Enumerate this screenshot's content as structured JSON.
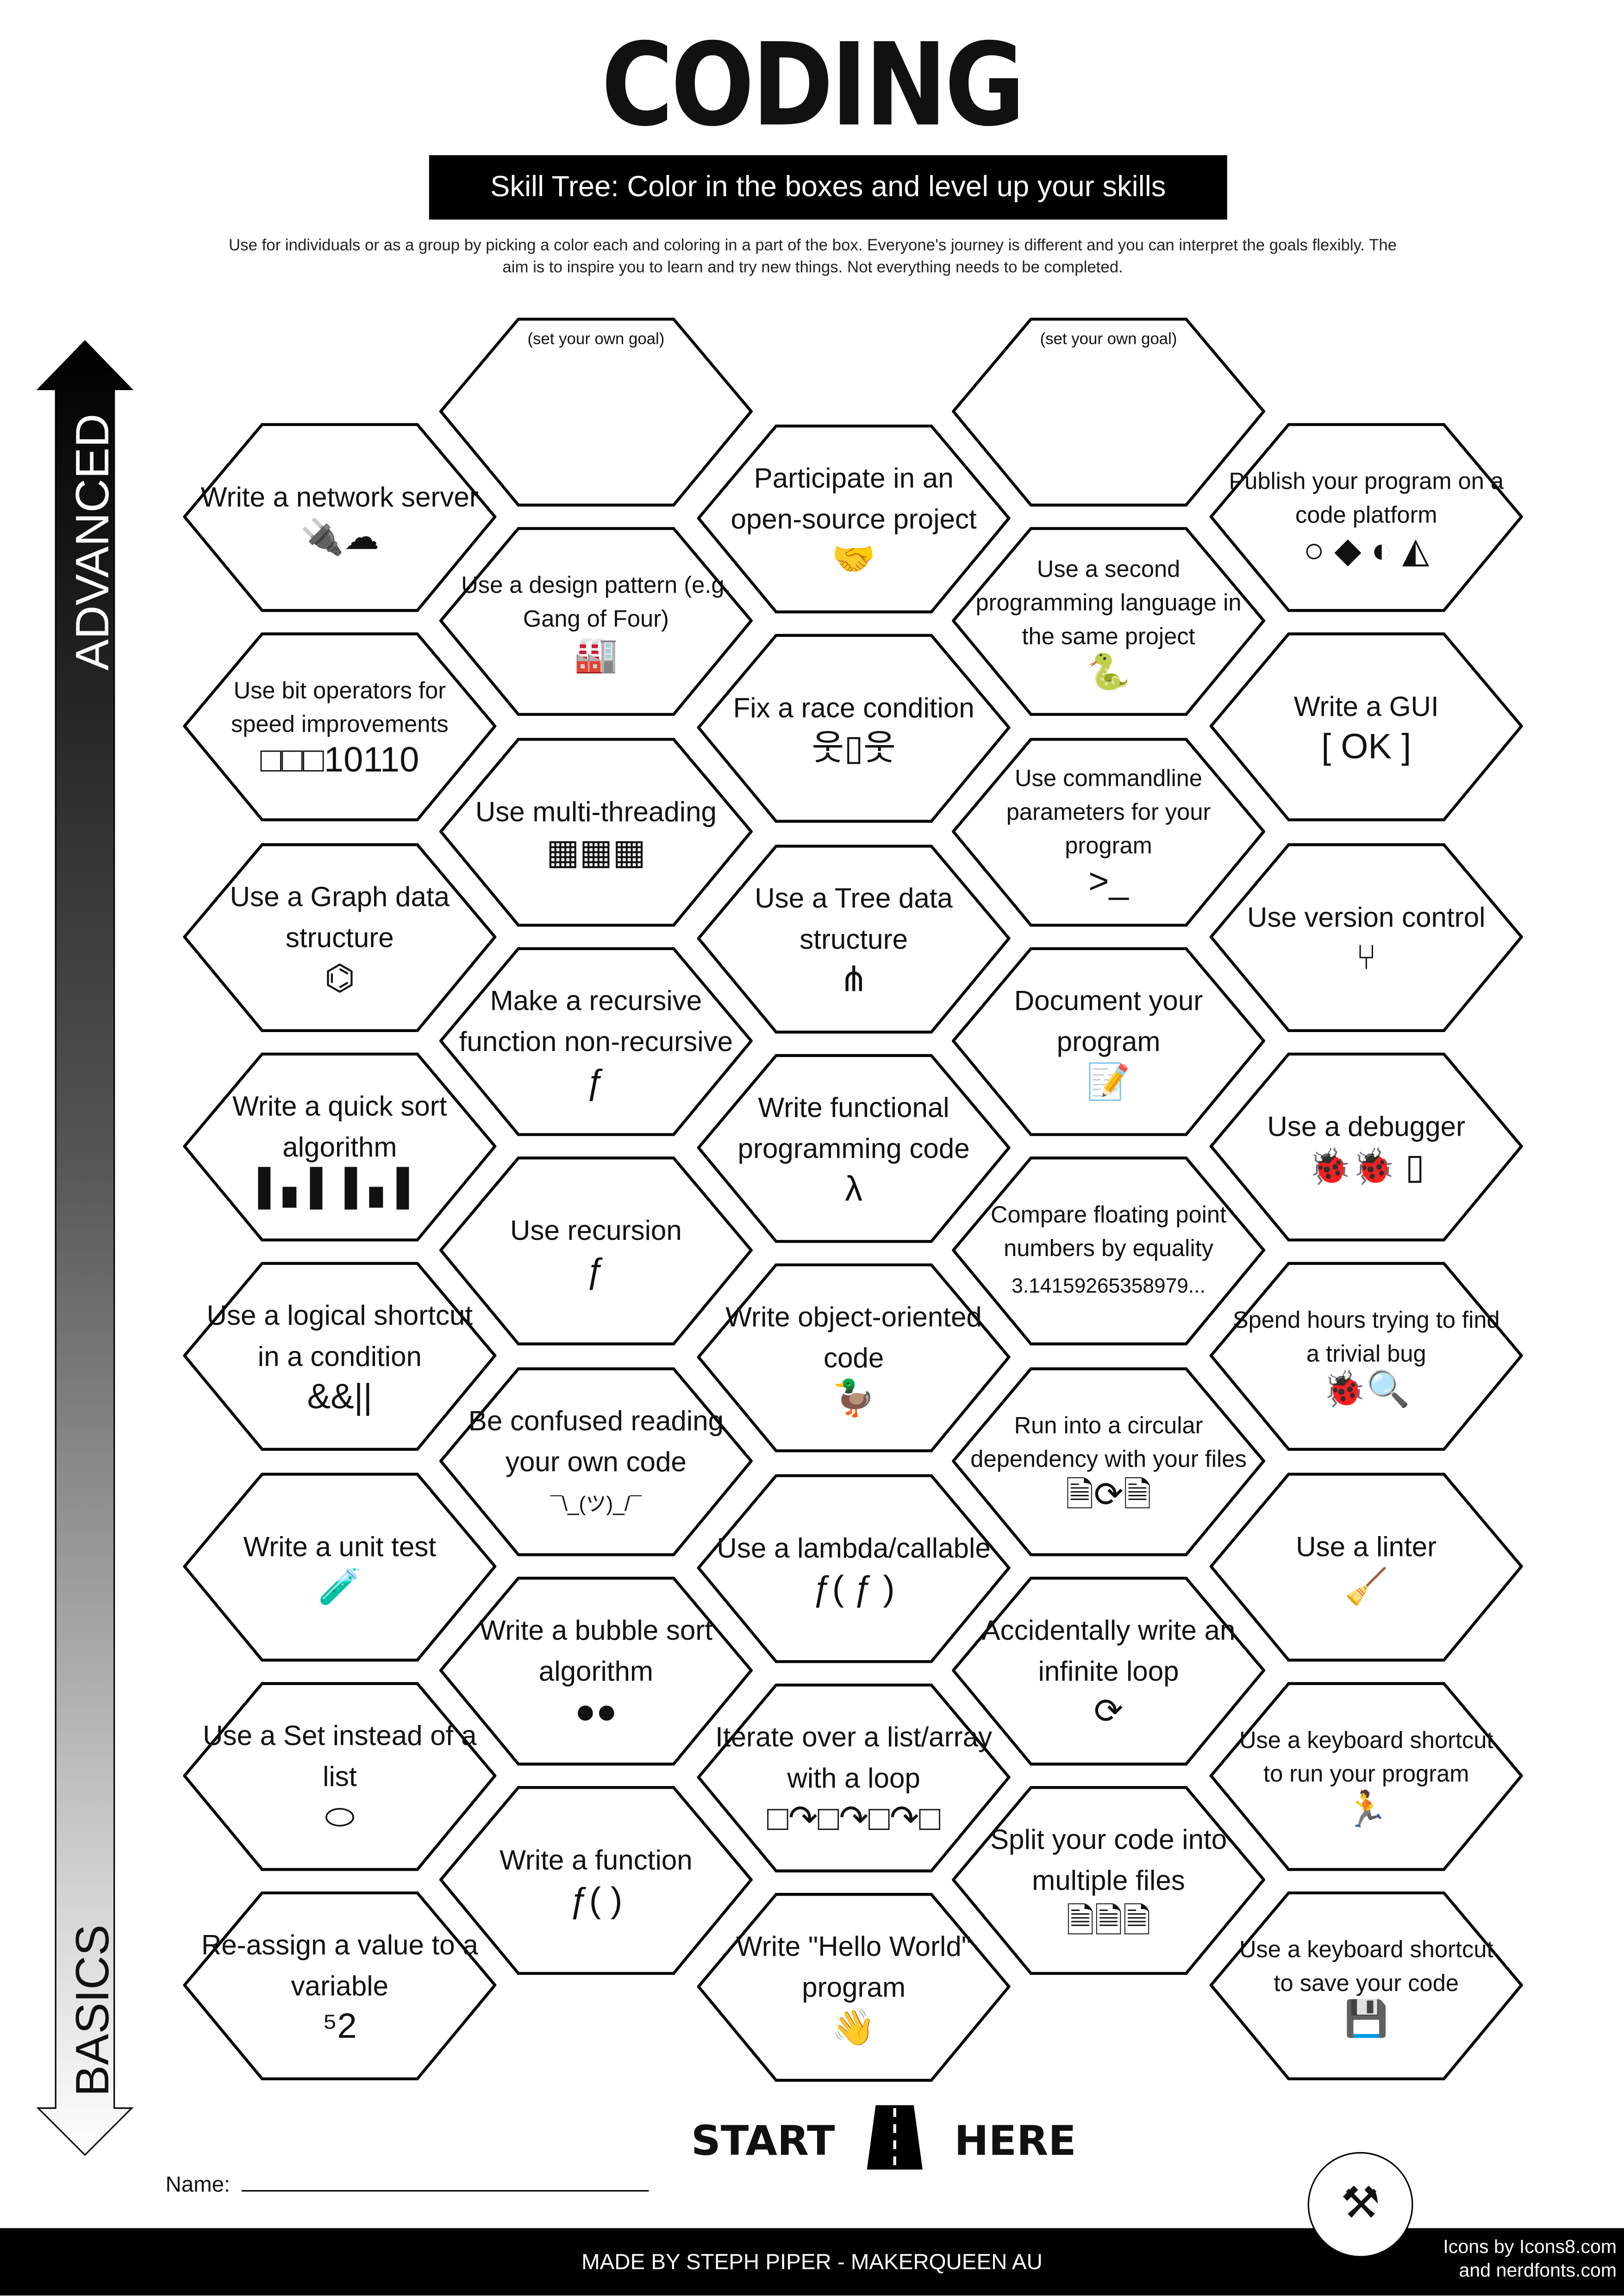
{
  "header": {
    "title": "CODING",
    "subtitle": "Skill Tree:  Color in the boxes and level up your skills",
    "intro": "Use for individuals or as a group by picking a color each and coloring in a part of the box.  Everyone's journey is different and you can interpret the goals flexibly.  The aim is to inspire you to learn and try new things. Not everything needs to be completed."
  },
  "axis": {
    "top_label": "ADVANCED",
    "bottom_label": "BASICS"
  },
  "columns": [
    [
      {
        "label": "Write a network server",
        "icon": "plug-cloud-icon",
        "glyph": "🔌☁"
      },
      {
        "label": "Use bit operators for speed improvements",
        "icon": "binary-icon",
        "glyph": "□□□10110",
        "small": true
      },
      {
        "label": "Use a Graph data structure",
        "icon": "graph-icon",
        "glyph": "⌬"
      },
      {
        "label": "Write a quick sort algorithm",
        "icon": "bars-icon",
        "glyph": "▌▖▌ ▌▖▌"
      },
      {
        "label": "Use a logical shortcut in a condition",
        "icon": "logic-operators-icon",
        "glyph": "&&||"
      },
      {
        "label": "Write a unit test",
        "icon": "test-tube-icon",
        "glyph": "🧪"
      },
      {
        "label": "Use a Set instead of a list",
        "icon": "set-icon",
        "glyph": "⬭"
      },
      {
        "label": "Re-assign a value to a variable",
        "icon": "reassign-icon",
        "glyph": "⁵2"
      }
    ],
    [
      {
        "label": "(set your own goal)",
        "icon": "",
        "glyph": "",
        "tiny": true
      },
      {
        "label": "Use a design pattern (e.g. Gang of Four)",
        "icon": "factory-icon",
        "glyph": "🏭",
        "small": true
      },
      {
        "label": "Use multi-threading",
        "icon": "chips-icon",
        "glyph": "▦▦▦"
      },
      {
        "label": "Make a recursive function non-recursive",
        "icon": "function-cards-icon",
        "glyph": "ƒ"
      },
      {
        "label": "Use recursion",
        "icon": "recursion-icon",
        "glyph": "ƒ"
      },
      {
        "label": "Be confused reading your own code",
        "icon": "shrug-icon",
        "glyph": "¯\\_(ツ)_/¯"
      },
      {
        "label": "Write a bubble sort algorithm",
        "icon": "bubbles-icon",
        "glyph": "●●"
      },
      {
        "label": "Write a function",
        "icon": "function-icon",
        "glyph": "ƒ( )"
      }
    ],
    [
      {
        "label": "Participate in an open-source project",
        "icon": "handshake-icon",
        "glyph": "🤝"
      },
      {
        "label": "Fix a race condition",
        "icon": "race-door-icon",
        "glyph": "웃▯웃"
      },
      {
        "label": "Use a Tree data structure",
        "icon": "tree-icon",
        "glyph": "⋔"
      },
      {
        "label": "Write functional programming code",
        "icon": "lambda-icon",
        "glyph": "λ"
      },
      {
        "label": "Write object-oriented code",
        "icon": "duck-icon",
        "glyph": "🦆"
      },
      {
        "label": "Use a lambda/callable",
        "icon": "callable-icon",
        "glyph": "ƒ( ƒ )"
      },
      {
        "label": "Iterate over a list/array with a loop",
        "icon": "loop-icon",
        "glyph": "□↷□↷□↷□"
      },
      {
        "label": "Write \"Hello World\" program",
        "icon": "waving-hand-icon",
        "glyph": "👋"
      }
    ],
    [
      {
        "label": "(set your own goal)",
        "icon": "",
        "glyph": "",
        "tiny": true
      },
      {
        "label": "Use a second programming language in the same project",
        "icon": "python-icon",
        "glyph": "🐍",
        "small": true
      },
      {
        "label": "Use commandline parameters for your program",
        "icon": "terminal-icon",
        "glyph": ">_",
        "small": true
      },
      {
        "label": "Document your program",
        "icon": "document-pen-icon",
        "glyph": "📝"
      },
      {
        "label": "Compare floating point numbers by equality",
        "icon": "pi-digits-icon",
        "glyph": "3.14159265358979...",
        "small": true
      },
      {
        "label": "Run into a circular dependency with your files",
        "icon": "circular-files-icon",
        "glyph": "🗎⟳🗎",
        "small": true
      },
      {
        "label": "Accidentally write an infinite loop",
        "icon": "refresh-icon",
        "glyph": "⟳"
      },
      {
        "label": "Split your code into multiple files",
        "icon": "files-icon",
        "glyph": "🗎🗎🗎"
      }
    ],
    [
      {
        "label": "Publish your program on a code platform",
        "icon": "code-platforms-icon",
        "glyph": "○ ◆ ◐ ◭",
        "small": true
      },
      {
        "label": "Write a GUI",
        "icon": "ok-button-icon",
        "glyph": "[ OK ]"
      },
      {
        "label": "Use version control",
        "icon": "branch-icon",
        "glyph": "⑂"
      },
      {
        "label": "Use a debugger",
        "icon": "bug-spray-icon",
        "glyph": "🐞🐞 ▯"
      },
      {
        "label": "Spend hours trying to find a trivial bug",
        "icon": "bug-search-icon",
        "glyph": "🐞🔍",
        "small": true
      },
      {
        "label": "Use a linter",
        "icon": "broom-icon",
        "glyph": "🧹"
      },
      {
        "label": "Use a keyboard shortcut to run your program",
        "icon": "running-icon",
        "glyph": "🏃",
        "small": true
      },
      {
        "label": "Use a keyboard shortcut to save your code",
        "icon": "floppy-icon",
        "glyph": "💾",
        "small": true
      }
    ]
  ],
  "start": {
    "left": "START",
    "right": "HERE"
  },
  "name_label": "Name:",
  "footer": {
    "made_by": "MADE BY STEPH PIPER  -  MAKERQUEEN AU",
    "credits_line1": "Icons by Icons8.com",
    "credits_line2": "and nerdfonts.com"
  }
}
